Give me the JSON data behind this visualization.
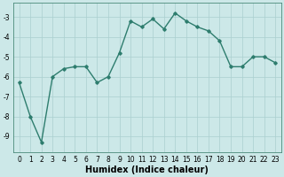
{
  "x": [
    0,
    1,
    2,
    3,
    4,
    5,
    6,
    7,
    8,
    9,
    10,
    11,
    12,
    13,
    14,
    15,
    16,
    17,
    18,
    19,
    20,
    21,
    22,
    23
  ],
  "y": [
    -6.3,
    -8.0,
    -9.3,
    -6.0,
    -5.6,
    -5.5,
    -5.5,
    -6.3,
    -6.0,
    -4.8,
    -3.2,
    -3.5,
    -3.1,
    -3.6,
    -2.8,
    -3.2,
    -3.5,
    -3.7,
    -4.2,
    -5.5,
    -5.5,
    -5.0,
    -5.0,
    -5.3
  ],
  "xlim": [
    -0.5,
    23.5
  ],
  "ylim": [
    -9.8,
    -2.3
  ],
  "yticks": [
    -9,
    -8,
    -7,
    -6,
    -5,
    -4,
    -3
  ],
  "xticks": [
    0,
    1,
    2,
    3,
    4,
    5,
    6,
    7,
    8,
    9,
    10,
    11,
    12,
    13,
    14,
    15,
    16,
    17,
    18,
    19,
    20,
    21,
    22,
    23
  ],
  "xlabel": "Humidex (Indice chaleur)",
  "line_color": "#2e7d6e",
  "marker": "D",
  "marker_size": 1.8,
  "line_width": 1.0,
  "bg_color": "#cce8e8",
  "grid_color": "#aacfcf",
  "tick_fontsize": 5.5,
  "xlabel_fontsize": 7.0,
  "xlabel_fontweight": "bold"
}
